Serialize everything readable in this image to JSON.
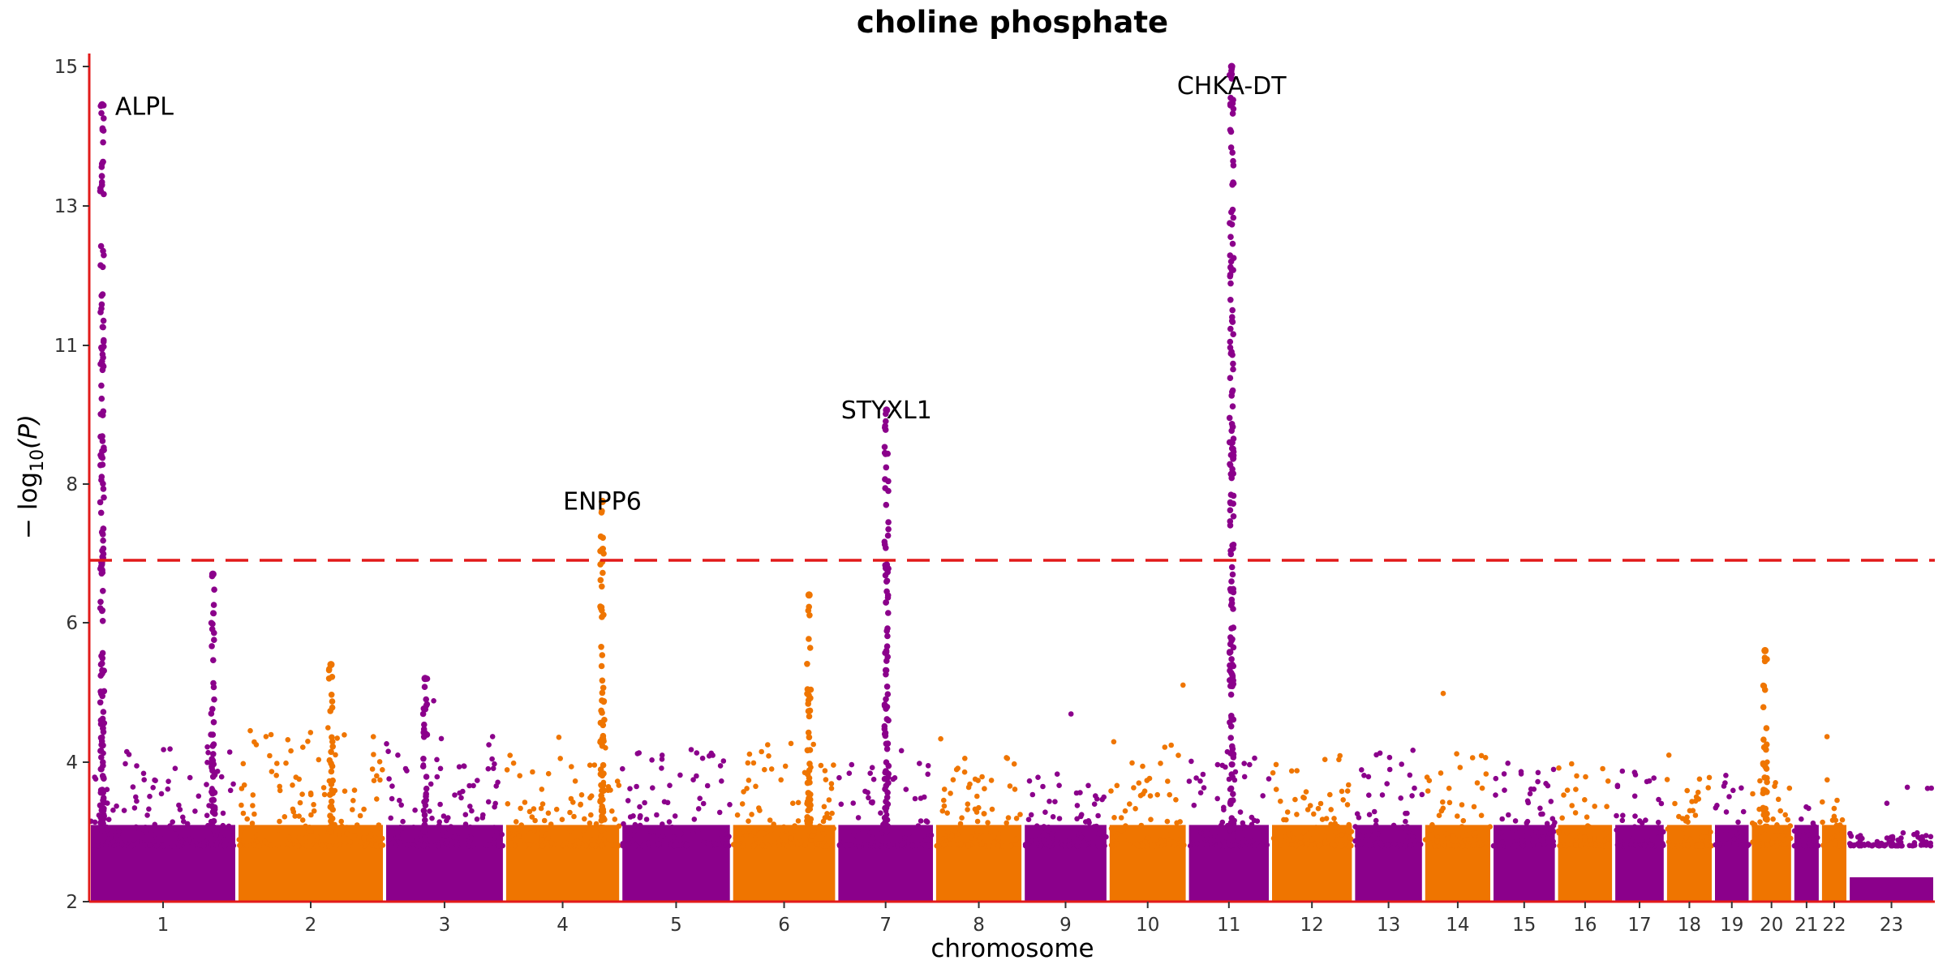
{
  "chart_data": {
    "type": "scatter",
    "subtype": "manhattan",
    "title": "choline phosphate",
    "xlabel": "chromosome",
    "ylabel": "−log10(P)",
    "ylabel_main": "− log",
    "ylabel_sub": "10",
    "ylabel_tail": "(P)",
    "ylim": [
      2,
      15.2
    ],
    "y_ticks": [
      2,
      4,
      6,
      8,
      11,
      13,
      15
    ],
    "significance_threshold": 6.9,
    "colors": {
      "odd": "#8b008b",
      "even": "#ef7500",
      "axis": "#e21a1a",
      "threshold": "#e21a1a"
    },
    "chromosomes": [
      {
        "label": "1",
        "start": 0.0,
        "end": 8.0,
        "color": "odd",
        "base_max": 4.2
      },
      {
        "label": "2",
        "start": 8.0,
        "end": 16.0,
        "color": "even",
        "base_max": 4.5
      },
      {
        "label": "3",
        "start": 16.0,
        "end": 22.5,
        "color": "odd",
        "base_max": 4.4
      },
      {
        "label": "4",
        "start": 22.5,
        "end": 28.8,
        "color": "even",
        "base_max": 4.1
      },
      {
        "label": "5",
        "start": 28.8,
        "end": 34.8,
        "color": "odd",
        "base_max": 4.2
      },
      {
        "label": "6",
        "start": 34.8,
        "end": 40.5,
        "color": "even",
        "base_max": 4.3
      },
      {
        "label": "7",
        "start": 40.5,
        "end": 45.8,
        "color": "odd",
        "base_max": 4.0
      },
      {
        "label": "8",
        "start": 45.8,
        "end": 50.6,
        "color": "even",
        "base_max": 4.1
      },
      {
        "label": "9",
        "start": 50.6,
        "end": 55.2,
        "color": "odd",
        "base_max": 4.0
      },
      {
        "label": "10",
        "start": 55.2,
        "end": 59.5,
        "color": "even",
        "base_max": 4.4
      },
      {
        "label": "11",
        "start": 59.5,
        "end": 64.0,
        "color": "odd",
        "base_max": 4.2
      },
      {
        "label": "12",
        "start": 64.0,
        "end": 68.5,
        "color": "even",
        "base_max": 4.1
      },
      {
        "label": "13",
        "start": 68.5,
        "end": 72.3,
        "color": "odd",
        "base_max": 4.2
      },
      {
        "label": "14",
        "start": 72.3,
        "end": 76.0,
        "color": "even",
        "base_max": 4.2
      },
      {
        "label": "15",
        "start": 76.0,
        "end": 79.5,
        "color": "odd",
        "base_max": 3.9
      },
      {
        "label": "16",
        "start": 79.5,
        "end": 82.6,
        "color": "even",
        "base_max": 4.0
      },
      {
        "label": "17",
        "start": 82.6,
        "end": 85.4,
        "color": "odd",
        "base_max": 3.9
      },
      {
        "label": "18",
        "start": 85.4,
        "end": 88.0,
        "color": "even",
        "base_max": 3.8
      },
      {
        "label": "19",
        "start": 88.0,
        "end": 90.0,
        "color": "odd",
        "base_max": 3.8
      },
      {
        "label": "20",
        "start": 90.0,
        "end": 92.3,
        "color": "even",
        "base_max": 3.9
      },
      {
        "label": "21",
        "start": 92.3,
        "end": 93.8,
        "color": "odd",
        "base_max": 3.4
      },
      {
        "label": "22",
        "start": 93.8,
        "end": 95.3,
        "color": "even",
        "base_max": 3.8
      },
      {
        "label": "23",
        "start": 95.3,
        "end": 100.0,
        "color": "odd",
        "base_max": 3.0
      }
    ],
    "peaks": [
      {
        "gene": "ALPL",
        "x": 0.7,
        "max": 14.45,
        "color": "odd",
        "label": "ALPL"
      },
      {
        "gene": "",
        "x": 6.7,
        "max": 6.7,
        "color": "odd",
        "label": ""
      },
      {
        "gene": "ENPP6",
        "x": 27.8,
        "max": 7.75,
        "color": "even",
        "label": "ENPP6"
      },
      {
        "gene": "STYXL1",
        "x": 43.2,
        "max": 9.6,
        "color": "odd",
        "label": "STYXL1"
      },
      {
        "gene": "CHKA-DT",
        "x": 61.9,
        "max": 15.0,
        "color": "odd",
        "label": "CHKA-DT"
      },
      {
        "gene": "",
        "x": 39.0,
        "max": 6.4,
        "color": "even",
        "label": ""
      },
      {
        "gene": "",
        "x": 13.1,
        "max": 5.4,
        "color": "even",
        "label": ""
      },
      {
        "gene": "",
        "x": 18.2,
        "max": 5.2,
        "color": "odd",
        "label": ""
      },
      {
        "gene": "",
        "x": 90.8,
        "max": 5.6,
        "color": "even",
        "label": ""
      }
    ]
  }
}
